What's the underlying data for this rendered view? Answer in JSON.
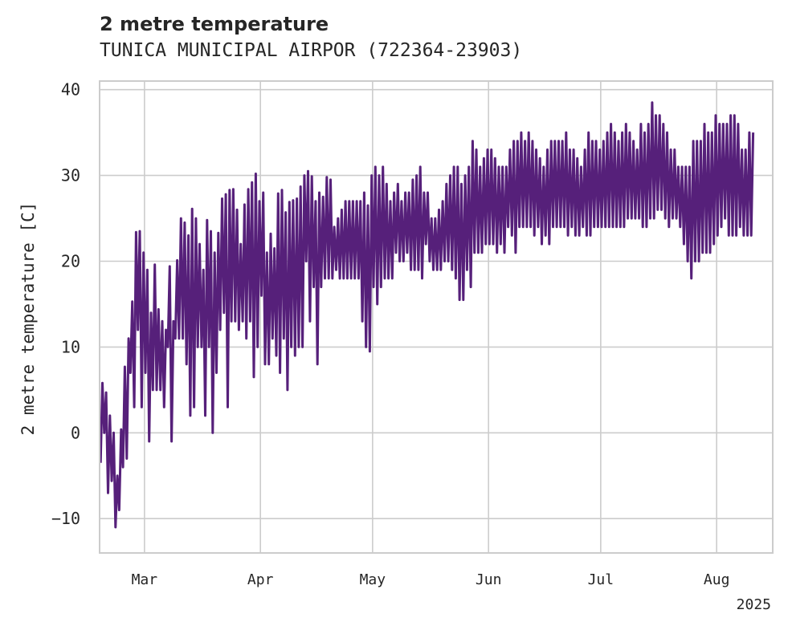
{
  "title": "2 metre temperature",
  "subtitle": "TUNICA MUNICIPAL AIRPOR (722364-23903)",
  "chart_data": {
    "type": "line",
    "title": "2 metre temperature",
    "subtitle": "TUNICA MUNICIPAL AIRPOR (722364-23903)",
    "xlabel": "",
    "ylabel": "2 metre temperature [C]",
    "x_range": [
      "2025-02-17",
      "2025-08-16"
    ],
    "ylim": [
      -14,
      41
    ],
    "yticks": [
      -10,
      0,
      10,
      20,
      30,
      40
    ],
    "xticks": [
      {
        "date": "2025-03-01",
        "label": "Mar"
      },
      {
        "date": "2025-04-01",
        "label": "Apr"
      },
      {
        "date": "2025-05-01",
        "label": "May"
      },
      {
        "date": "2025-06-01",
        "label": "Jun"
      },
      {
        "date": "2025-07-01",
        "label": "Jul"
      },
      {
        "date": "2025-08-01",
        "label": "Aug"
      }
    ],
    "year_label": "2025",
    "grid": true,
    "line_color": "#56207a",
    "series": [
      {
        "daily_min": [
          -3.5,
          0.0,
          -7.0,
          -5.6,
          -11.0,
          -9.0,
          -4.0,
          -3.0,
          7.0,
          3.0,
          12.0,
          3.0,
          7.0,
          -1.0,
          5.0,
          5.0,
          5.0,
          3.0,
          10.0,
          -1.0,
          11.0,
          11.0,
          11.0,
          8.0,
          2.0,
          3.0,
          10.0,
          10.0,
          2.0,
          10.0,
          0.0,
          7.0,
          12.0,
          14.0,
          3.0,
          13.0,
          13.0,
          12.0,
          13.0,
          11.0,
          13.0,
          6.5,
          10.0,
          16.0,
          8.0,
          8.0,
          11.0,
          9.0,
          7.0,
          11.0,
          5.0,
          10.0,
          9.0,
          10.0,
          10.0,
          20.0,
          13.0,
          17.0,
          8.0,
          17.0,
          18.0,
          18.0,
          18.0,
          19.0,
          18.0,
          18.0,
          18.0,
          18.0,
          18.0,
          18.0,
          13.0,
          10.0,
          9.5,
          17.0,
          15.0,
          17.0,
          18.0,
          18.0,
          18.0,
          21.0,
          20.0,
          20.0,
          21.0,
          19.0,
          19.0,
          19.0,
          18.0,
          22.0,
          20.0,
          19.0,
          19.0,
          19.0,
          20.0,
          20.0,
          19.0,
          18.0,
          15.5,
          15.5,
          19.0,
          17.0,
          21.0,
          21.0,
          21.0,
          22.0,
          22.0,
          22.0,
          21.0,
          22.0,
          21.0,
          24.0,
          23.0,
          21.0,
          24.0,
          24.0,
          24.0,
          24.0,
          23.0,
          24.0,
          22.0,
          23.0,
          22.0,
          24.0,
          24.0,
          24.0,
          24.0,
          23.0,
          24.0,
          23.0,
          23.0,
          24.0,
          23.0,
          23.0,
          24.0,
          24.0,
          24.0,
          24.0,
          24.0,
          24.0,
          24.0,
          24.0,
          24.0,
          25.0,
          25.0,
          25.0,
          25.0,
          24.0,
          24.0,
          25.0,
          25.0,
          26.0,
          26.0,
          25.0,
          24.0,
          25.0,
          25.0,
          24.0,
          22.0,
          20.0,
          18.0,
          20.0,
          20.0,
          21.0,
          21.0,
          21.0,
          22.0,
          23.0,
          24.0,
          25.0,
          23.0,
          23.0,
          23.0,
          24.0,
          23.0,
          23.0,
          23.0
        ],
        "daily_max": [
          5.8,
          4.7,
          2.0,
          0.0,
          -5.0,
          0.4,
          7.7,
          11.0,
          15.3,
          23.4,
          23.5,
          21.0,
          19.0,
          14.0,
          19.6,
          14.4,
          13.0,
          12.0,
          19.4,
          13.0,
          20.1,
          25.0,
          24.5,
          23.0,
          26.1,
          25.0,
          22.0,
          19.0,
          24.8,
          23.5,
          21.0,
          23.3,
          27.3,
          27.8,
          28.3,
          28.4,
          26.0,
          22.0,
          26.6,
          28.4,
          29.2,
          30.2,
          27.0,
          28.0,
          21.0,
          23.2,
          21.5,
          27.9,
          28.3,
          25.7,
          26.9,
          27.1,
          27.3,
          28.7,
          30.0,
          30.5,
          29.9,
          27.0,
          28.0,
          27.5,
          29.8,
          29.5,
          24.0,
          25.0,
          26.0,
          27.0,
          27.0,
          27.0,
          27.0,
          27.0,
          28.0,
          26.5,
          30.0,
          31.0,
          30.0,
          31.0,
          29.0,
          27.0,
          28.0,
          29.0,
          27.0,
          28.0,
          28.0,
          29.5,
          30.0,
          31.0,
          28.0,
          28.0,
          25.0,
          25.0,
          26.0,
          27.0,
          29.0,
          30.0,
          31.0,
          31.0,
          29.0,
          30.0,
          31.0,
          34.0,
          33.0,
          31.0,
          32.0,
          33.0,
          33.0,
          32.0,
          31.0,
          31.0,
          31.0,
          33.0,
          34.0,
          34.0,
          35.0,
          34.0,
          35.0,
          34.0,
          33.0,
          32.0,
          31.0,
          33.0,
          34.0,
          34.0,
          34.0,
          34.0,
          35.0,
          33.0,
          33.0,
          32.0,
          31.0,
          33.0,
          35.0,
          34.0,
          34.0,
          33.0,
          34.0,
          35.0,
          36.0,
          35.0,
          34.0,
          35.0,
          36.0,
          35.0,
          34.0,
          33.0,
          36.0,
          35.0,
          36.0,
          38.5,
          37.0,
          37.0,
          36.0,
          35.0,
          33.0,
          33.0,
          31.0,
          31.0,
          31.0,
          31.0,
          34.0,
          34.0,
          34.0,
          36.0,
          35.0,
          35.0,
          37.0,
          36.0,
          36.0,
          36.0,
          37.0,
          37.0,
          36.0,
          33.0,
          33.0,
          35.0,
          35.0
        ]
      }
    ]
  }
}
